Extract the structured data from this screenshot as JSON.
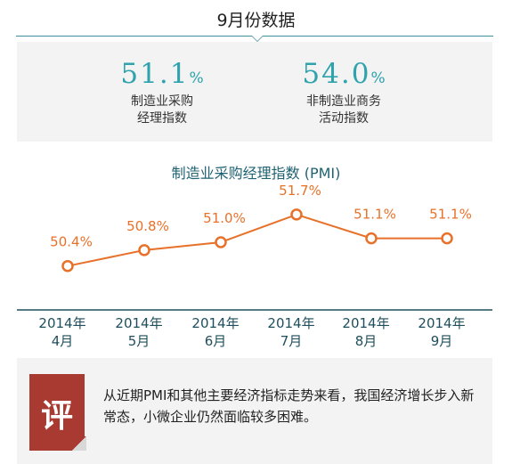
{
  "header": {
    "title": "9月份数据"
  },
  "stats": [
    {
      "value": "51.1",
      "unit": "%",
      "label_line1": "制造业采购",
      "label_line2": "经理指数"
    },
    {
      "value": "54.0",
      "unit": "%",
      "label_line1": "非制造业商务",
      "label_line2": "活动指数"
    }
  ],
  "chart_data": {
    "type": "line",
    "title": "制造业采购经理指数 (PMI)",
    "categories": [
      "2014年\n4月",
      "2014年\n5月",
      "2014年\n6月",
      "2014年\n7月",
      "2014年\n8月",
      "2014年\n9月"
    ],
    "values": [
      50.4,
      50.8,
      51.0,
      51.7,
      51.1,
      51.1
    ],
    "data_labels": [
      "50.4%",
      "50.8%",
      "51.0%",
      "51.7%",
      "51.1%",
      "51.1%"
    ],
    "xlabel": "",
    "ylabel": "",
    "ylim": [
      50.1,
      51.9
    ],
    "grid": false,
    "colors": {
      "line": "#e8712a",
      "marker_fill": "#ffffff",
      "label": "#e8712a",
      "axis": "#1f4f5c"
    }
  },
  "comment": {
    "badge": "评",
    "text": "从近期PMI和其他主要经济指标走势来看，我国经济增长步入新常态，小微企业仍然面临较多困难。"
  },
  "theme": {
    "accent": "#2fa3ad",
    "badge_bg": "#a93a32",
    "panel_bg": "#f3f3f3"
  }
}
